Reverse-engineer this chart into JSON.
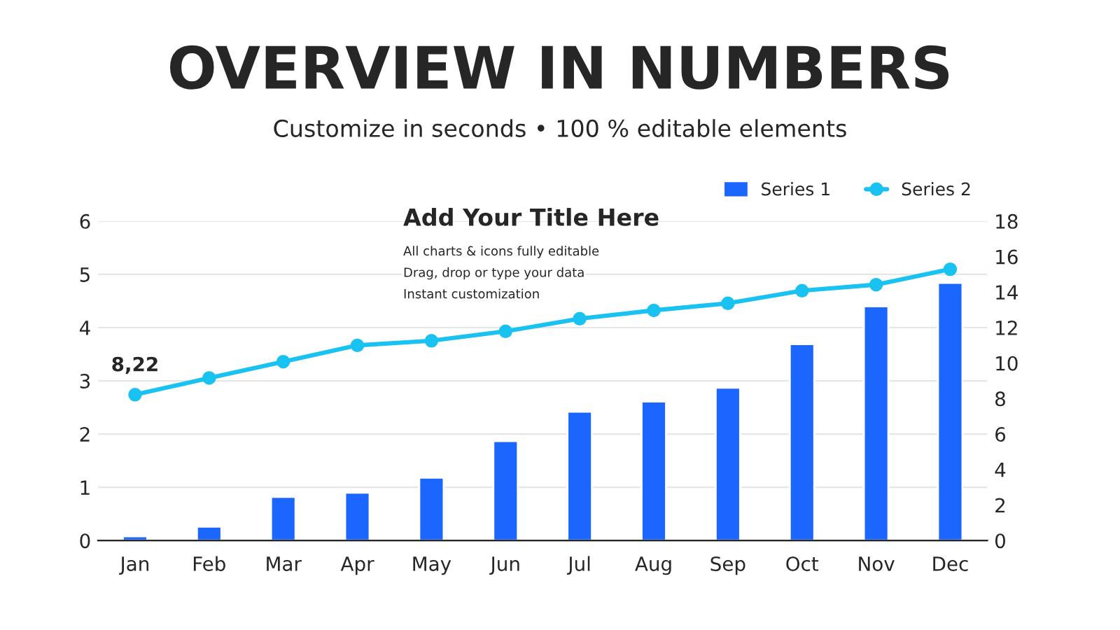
{
  "chart_data": {
    "type": "bar",
    "title": "OVERVIEW IN NUMBERS",
    "subtitle": "Customize in seconds • 100 % editable elements",
    "categories": [
      "Jan",
      "Feb",
      "Mar",
      "Apr",
      "May",
      "Jun",
      "Jul",
      "Aug",
      "Sep",
      "Oct",
      "Nov",
      "Dec"
    ],
    "series": [
      {
        "name": "Series 1",
        "color": "#1a66ff",
        "values": [
          0.08,
          0.26,
          0.82,
          0.9,
          1.18,
          1.87,
          2.42,
          2.61,
          2.87,
          3.69,
          4.4,
          4.84
        ]
      },
      {
        "name": "Series 2",
        "type": "line",
        "axis": "y2",
        "color": "#19c2f0",
        "marker": "circle",
        "values": [
          8.22,
          9.16,
          10.08,
          11.0,
          11.26,
          11.79,
          12.5,
          12.97,
          13.37,
          14.08,
          14.42,
          15.29
        ],
        "value_labels": [
          "8,22",
          null,
          null,
          null,
          null,
          null,
          null,
          null,
          null,
          null,
          null,
          null
        ]
      }
    ],
    "ylim": [
      0,
      6
    ],
    "yticks": [
      0,
      1,
      2,
      3,
      4,
      5,
      6
    ],
    "y2lim": [
      0,
      18
    ],
    "y2ticks": [
      0,
      2,
      4,
      6,
      8,
      10,
      12,
      14,
      16,
      18
    ],
    "grid": "y",
    "legend": "top right",
    "annotations": [
      "Add Your Title Here",
      "All charts & icons fully editable",
      "Drag, drop or type your data",
      "Instant customization"
    ]
  }
}
